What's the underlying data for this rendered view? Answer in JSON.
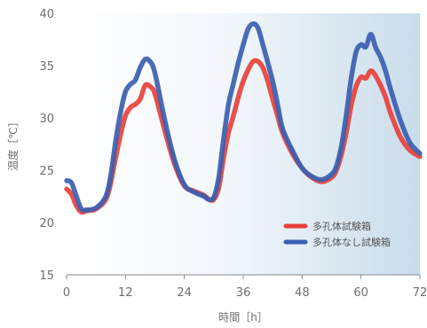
{
  "chart_data": {
    "type": "line",
    "xlabel": "時間［h］",
    "ylabel": "温度［℃］",
    "xlim": [
      0,
      72
    ],
    "ylim": [
      15,
      40
    ],
    "xticks": [
      "0",
      "12",
      "24",
      "36",
      "48",
      "60",
      "72"
    ],
    "yticks": [
      "40",
      "35",
      "30",
      "25",
      "20",
      "15"
    ],
    "grid": false,
    "legend_position": "bottom-right",
    "background": "gradient white to light blue",
    "series": [
      {
        "name": "多孔体試験箱",
        "color": "#e8413c",
        "x": [
          0,
          1,
          2,
          3,
          4,
          6,
          8,
          9,
          10,
          11,
          12,
          13,
          14,
          15,
          16,
          17,
          18,
          20,
          22,
          24,
          26,
          28,
          29,
          30,
          31,
          32,
          33,
          34,
          35,
          36,
          37,
          38,
          39,
          40,
          41,
          42,
          43,
          44,
          46,
          48,
          50,
          52,
          54,
          55,
          56,
          57,
          58,
          59,
          60,
          61,
          62,
          63,
          64,
          65,
          66,
          68,
          70,
          72
        ],
        "values": [
          23.2,
          22.7,
          21.6,
          21.0,
          21.1,
          21.3,
          22.2,
          23.8,
          26.2,
          28.4,
          30.2,
          31.0,
          31.3,
          31.8,
          33.1,
          33.0,
          32.3,
          28.8,
          25.6,
          23.5,
          23.0,
          22.6,
          22.2,
          22.2,
          23.3,
          26.2,
          28.6,
          30.2,
          32.0,
          33.5,
          34.6,
          35.4,
          35.4,
          34.8,
          33.5,
          31.8,
          30.2,
          28.6,
          26.6,
          25.2,
          24.3,
          23.9,
          24.3,
          25.0,
          26.5,
          28.6,
          31.2,
          33.0,
          33.9,
          33.8,
          34.5,
          34.0,
          33.1,
          32.0,
          30.5,
          28.2,
          26.9,
          26.3
        ]
      },
      {
        "name": "多孔体なし試験箱",
        "color": "#3a5fb0",
        "x": [
          0,
          1,
          2,
          3,
          4,
          6,
          8,
          9,
          10,
          11,
          12,
          13,
          14,
          15,
          16,
          17,
          18,
          20,
          22,
          24,
          26,
          28,
          29,
          30,
          31,
          32,
          33,
          34,
          35,
          36,
          37,
          38,
          39,
          40,
          41,
          42,
          43,
          44,
          46,
          48,
          50,
          52,
          54,
          55,
          56,
          57,
          58,
          59,
          60,
          61,
          62,
          63,
          64,
          65,
          66,
          68,
          70,
          72
        ],
        "values": [
          24.0,
          23.8,
          22.5,
          21.3,
          21.2,
          21.4,
          22.5,
          24.5,
          27.8,
          30.5,
          32.5,
          33.2,
          33.6,
          34.8,
          35.6,
          35.4,
          34.3,
          29.8,
          26.0,
          23.6,
          22.9,
          22.5,
          22.2,
          22.4,
          24.3,
          28.0,
          31.3,
          33.3,
          35.3,
          37.0,
          38.5,
          39.0,
          38.6,
          37.0,
          35.3,
          33.5,
          31.3,
          29.0,
          26.9,
          25.2,
          24.4,
          24.1,
          24.6,
          25.4,
          27.3,
          30.3,
          33.8,
          36.3,
          37.0,
          36.8,
          38.0,
          36.7,
          35.8,
          34.5,
          32.8,
          29.8,
          27.6,
          26.6
        ]
      }
    ]
  }
}
